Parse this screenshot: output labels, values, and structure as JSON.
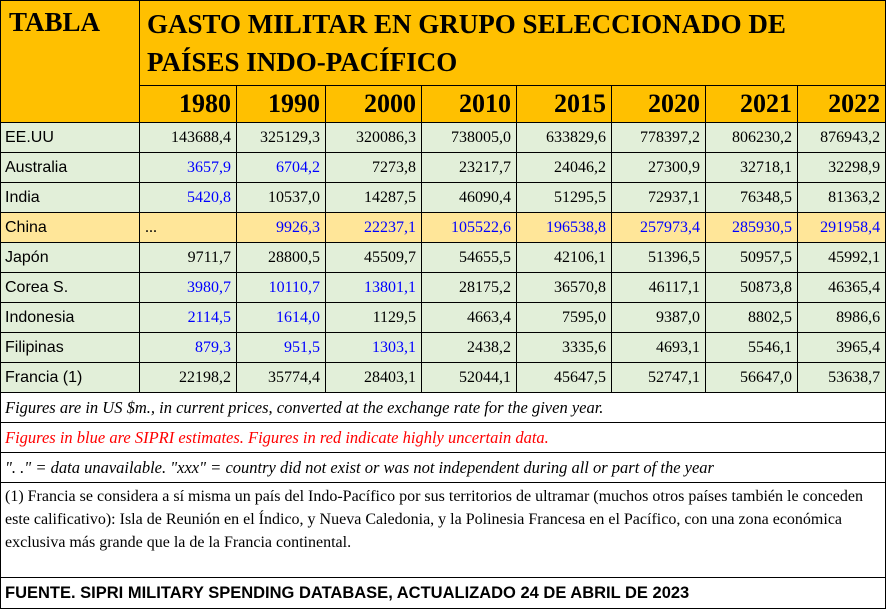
{
  "header": {
    "tabla": "TABLA",
    "title_line1": "GASTO MILITAR EN GRUPO SELECCIONADO DE",
    "title_line2": "PAÍSES INDO-PACÍFICO"
  },
  "years": [
    "1980",
    "1990",
    "2000",
    "2010",
    "2015",
    "2020",
    "2021",
    "2022"
  ],
  "rows": [
    {
      "country": "EE.UU",
      "values": [
        "143688,4",
        "325129,3",
        "320086,3",
        "738005,0",
        "633829,6",
        "778397,2",
        "806230,2",
        "876943,2"
      ],
      "blue": [],
      "highlight": false
    },
    {
      "country": "Australia",
      "values": [
        "3657,9",
        "6704,2",
        "7273,8",
        "23217,7",
        "24046,2",
        "27300,9",
        "32718,1",
        "32298,9"
      ],
      "blue": [
        0,
        1
      ],
      "highlight": false
    },
    {
      "country": "India",
      "values": [
        "5420,8",
        "10537,0",
        "14287,5",
        "46090,4",
        "51295,5",
        "72937,1",
        "76348,5",
        "81363,2"
      ],
      "blue": [
        0
      ],
      "highlight": false
    },
    {
      "country": "China",
      "values": [
        "...",
        "9926,3",
        "22237,1",
        "105522,6",
        "196538,8",
        "257973,4",
        "285930,5",
        "291958,4"
      ],
      "blue": [
        1,
        2,
        3,
        4,
        5,
        6,
        7
      ],
      "highlight": true
    },
    {
      "country": "Japón",
      "values": [
        "9711,7",
        "28800,5",
        "45509,7",
        "54655,5",
        "42106,1",
        "51396,5",
        "50957,5",
        "45992,1"
      ],
      "blue": [],
      "highlight": false
    },
    {
      "country": "Corea S.",
      "values": [
        "3980,7",
        "10110,7",
        "13801,1",
        "28175,2",
        "36570,8",
        "46117,1",
        "50873,8",
        "46365,4"
      ],
      "blue": [
        0,
        1,
        2
      ],
      "highlight": false
    },
    {
      "country": "Indonesia",
      "values": [
        "2114,5",
        "1614,0",
        "1129,5",
        "4663,4",
        "7595,0",
        "9387,0",
        "8802,5",
        "8986,6"
      ],
      "blue": [
        0,
        1
      ],
      "highlight": false
    },
    {
      "country": "Filipinas",
      "values": [
        "879,3",
        "951,5",
        "1303,1",
        "2438,2",
        "3335,6",
        "4693,1",
        "5546,1",
        "3965,4"
      ],
      "blue": [
        0,
        1,
        2
      ],
      "highlight": false
    },
    {
      "country": "Francia (1)",
      "values": [
        "22198,2",
        "35774,4",
        "28403,1",
        "52044,1",
        "45647,5",
        "52747,1",
        "56647,0",
        "53638,7"
      ],
      "blue": [],
      "highlight": false
    }
  ],
  "colors": {
    "header": "#ffc000",
    "row": "#e2efd9",
    "highlight": "#ffe699",
    "estimate": "#0000ff",
    "uncertain": "#ff0000"
  },
  "notes": {
    "prices": "Figures are in US $m., in current prices, converted at the exchange rate for the given year.",
    "estimates": "Figures in blue are SIPRI estimates. Figures in red indicate highly uncertain data.",
    "unavailable": "\". .\" = data unavailable. \"xxx\" = country did not exist or was not independent during all or part of the year",
    "footnote": "(1) Francia se considera a sí misma un país del Indo-Pacífico por sus territorios de ultramar (muchos otros países también le conceden este calificativo): Isla de Reunión en el Índico, y Nueva Caledonia, y la Polinesia Francesa en el Pacífico, con una zona económica exclusiva más grande que la de la Francia continental.",
    "source": "FUENTE. SIPRI MILITARY SPENDING DATABASE, ACTUALIZADO 24 DE ABRIL DE 2023"
  }
}
